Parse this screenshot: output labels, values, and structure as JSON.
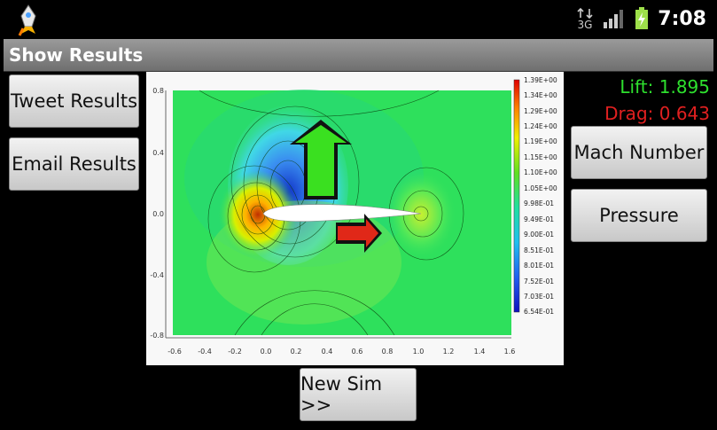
{
  "status_bar": {
    "network": "3G",
    "time": "7:08",
    "icons": [
      "rocket-app-icon",
      "data-transfer-icon",
      "signal-icon",
      "battery-charging-icon"
    ]
  },
  "header": {
    "title": "Show Results"
  },
  "buttons": {
    "tweet": "Tweet Results",
    "email": "Email Results",
    "mach": "Mach Number",
    "pressure": "Pressure",
    "new_sim": "New Sim >>"
  },
  "results": {
    "lift": "Lift: 1.895",
    "drag": "Drag: 0.643"
  },
  "colors": {
    "lift": "#2ee02e",
    "drag": "#e02020",
    "field": "#22dd55"
  },
  "chart_data": {
    "type": "contour",
    "x_ticks": [
      "-0.6",
      "-0.4",
      "-0.2",
      "0.0",
      "0.2",
      "0.4",
      "0.6",
      "0.8",
      "1.0",
      "1.2",
      "1.4",
      "1.6"
    ],
    "y_ticks": [
      "0.8",
      "0.4",
      "0.0",
      "-0.4",
      "-0.8"
    ],
    "xlim": [
      -0.6,
      1.6
    ],
    "ylim": [
      -0.8,
      0.8
    ],
    "colorbar_labels": [
      "1.39E+00",
      "1.34E+00",
      "1.29E+00",
      "1.24E+00",
      "1.19E+00",
      "1.15E+00",
      "1.10E+00",
      "1.05E+00",
      "9.98E-01",
      "9.49E-01",
      "9.00E-01",
      "8.51E-01",
      "8.01E-01",
      "7.52E-01",
      "7.03E-01",
      "6.54E-01"
    ]
  }
}
